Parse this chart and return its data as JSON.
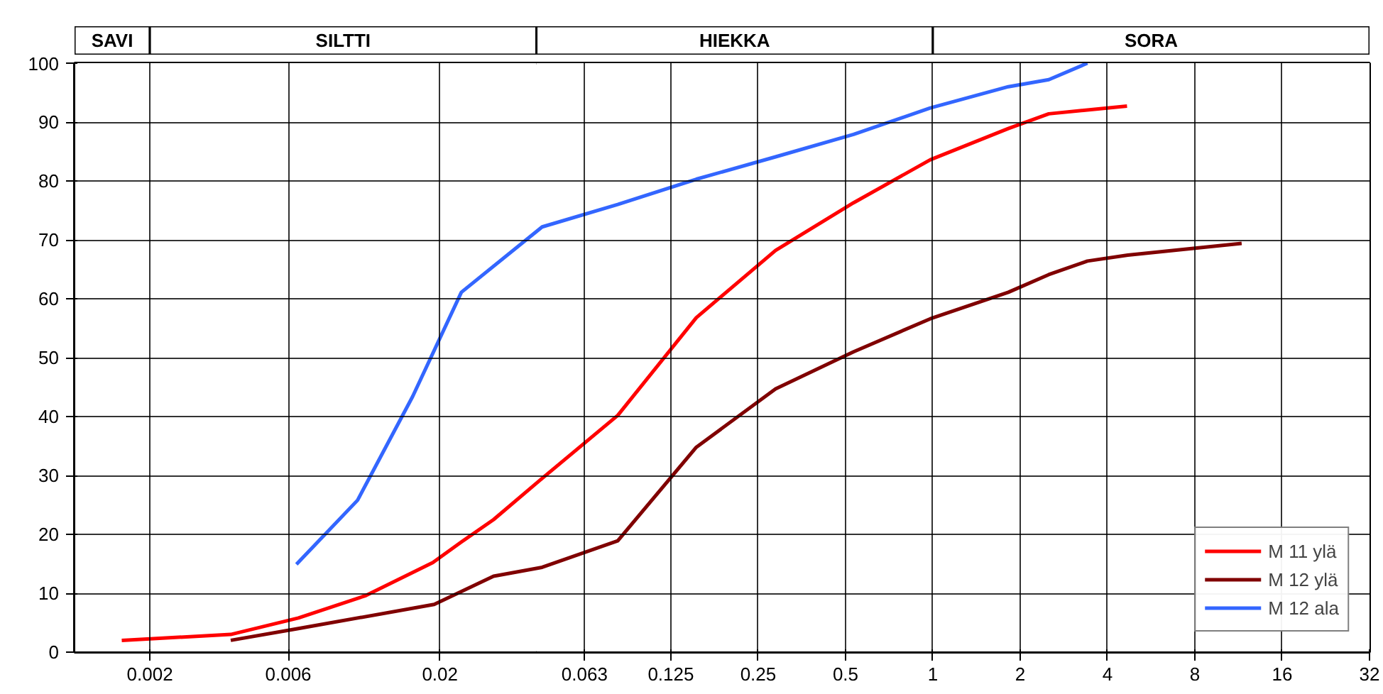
{
  "chart_data": {
    "type": "line",
    "log": "x",
    "xlim": [
      0.0011,
      32
    ],
    "xticks": [
      0.002,
      0.006,
      0.02,
      0.063,
      0.125,
      0.25,
      0.5,
      1,
      2,
      4,
      8,
      16,
      32
    ],
    "ylim": [
      0,
      100
    ],
    "yticks": [
      0,
      10,
      20,
      30,
      40,
      50,
      60,
      70,
      80,
      90,
      100
    ],
    "grid": true,
    "legend": "bottom right",
    "line_style": "solid",
    "marker": "none",
    "bands": [
      {
        "axis": "x",
        "from": 0.0011,
        "to": 0.002,
        "label": "SAVI",
        "color": "#ffffff"
      },
      {
        "axis": "x",
        "from": 0.002,
        "to": 0.043,
        "label": "SILTTI",
        "color": "#ffffff"
      },
      {
        "axis": "x",
        "from": 0.043,
        "to": 1,
        "label": "HIEKKA",
        "color": "#ffffff"
      },
      {
        "axis": "x",
        "from": 1,
        "to": 32,
        "label": "SORA",
        "color": "#ffffff"
      }
    ],
    "series": [
      {
        "name": "M 11 ylä",
        "color": "#ff0000",
        "x": [
          0.0016,
          0.0038,
          0.0065,
          0.0111,
          0.0189,
          0.0237,
          0.0306,
          0.045,
          0.082,
          0.153,
          0.287,
          0.533,
          0.98,
          1.82,
          2.51,
          4.67
        ],
        "values": [
          2.0,
          3.0,
          5.8,
          9.6,
          15.2,
          18.7,
          22.5,
          29.5,
          40.2,
          56.8,
          68.2,
          76.3,
          83.6,
          88.9,
          91.4,
          92.7
        ]
      },
      {
        "name": "M 12 ylä",
        "color": "#800000",
        "x": [
          0.0038,
          0.0065,
          0.0191,
          0.0306,
          0.045,
          0.082,
          0.153,
          0.287,
          0.533,
          0.98,
          1.82,
          2.51,
          3.41,
          4.7,
          11.6
        ],
        "values": [
          2.0,
          4.0,
          8.1,
          12.9,
          14.4,
          18.9,
          34.8,
          44.7,
          51.0,
          56.6,
          61.1,
          64.1,
          66.4,
          67.4,
          69.4
        ]
      },
      {
        "name": "M 12 ala",
        "color": "#3366ff",
        "x": [
          0.0064,
          0.0104,
          0.0161,
          0.0237,
          0.045,
          0.082,
          0.153,
          0.287,
          0.533,
          0.98,
          1.82,
          2.51,
          3.41
        ],
        "values": [
          14.9,
          25.8,
          43.4,
          61.1,
          72.2,
          76.0,
          80.3,
          84.1,
          87.9,
          92.4,
          96.0,
          97.2,
          100
        ]
      }
    ]
  }
}
